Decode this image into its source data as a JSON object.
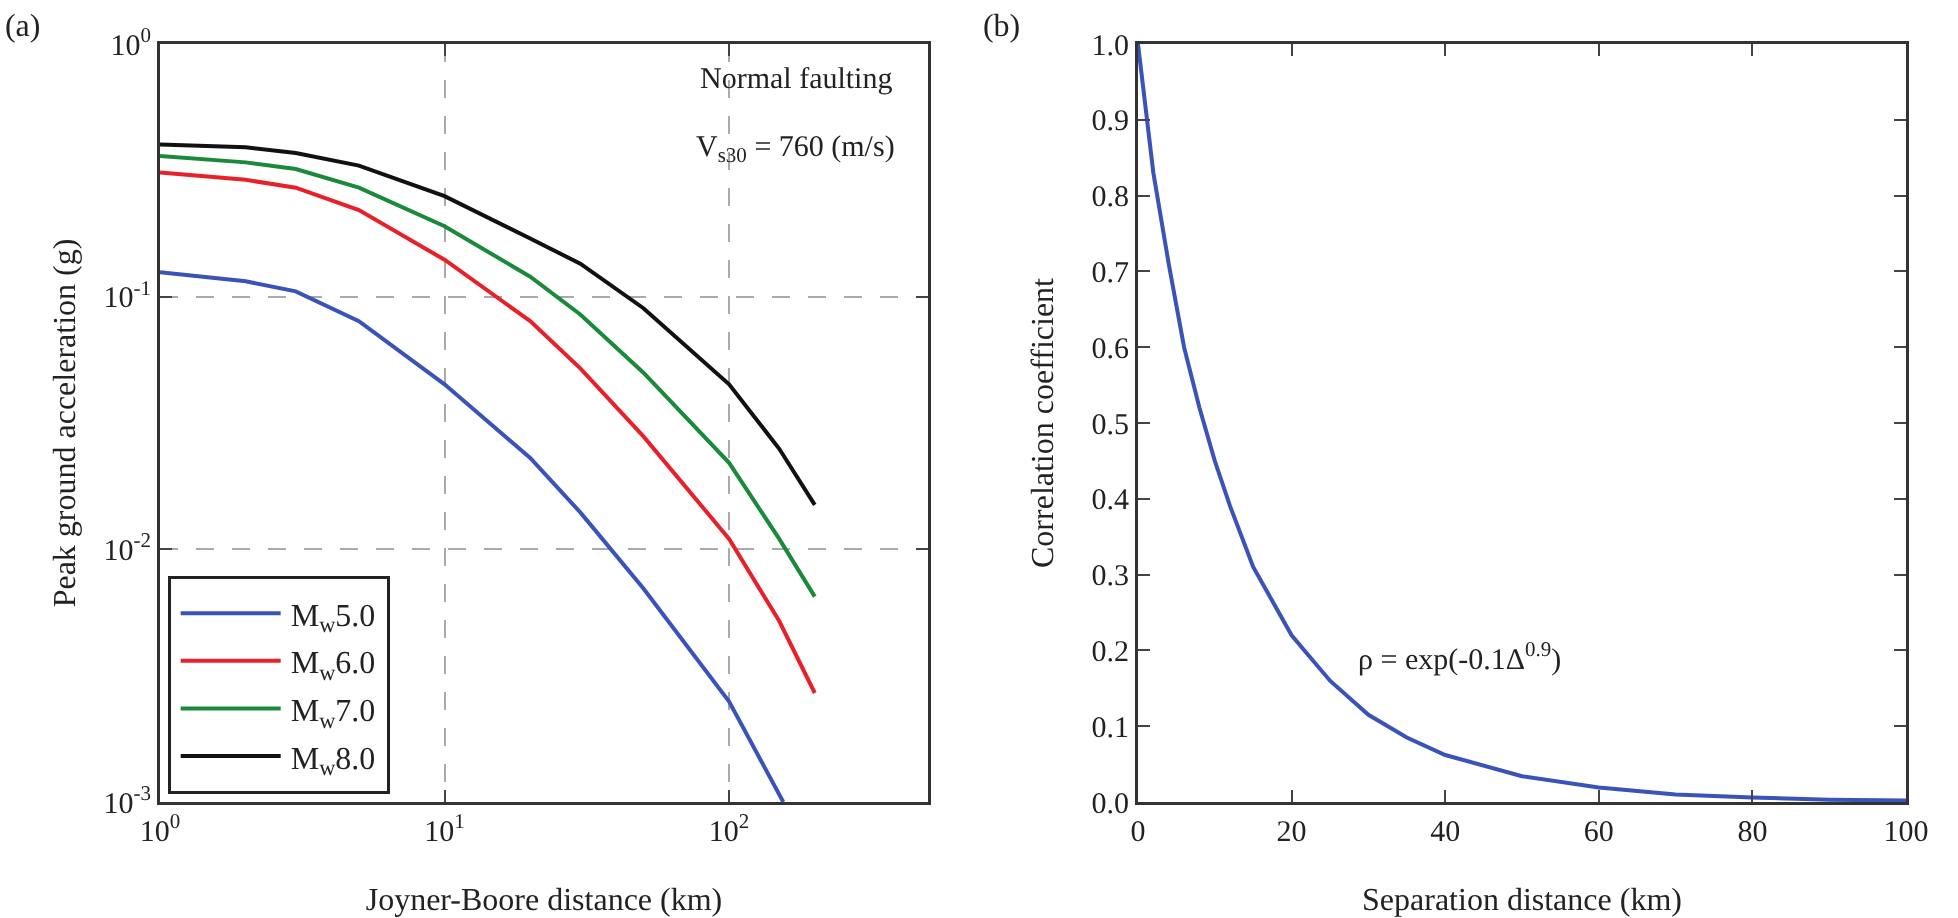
{
  "chart_data": [
    {
      "type": "line",
      "title": "(a)",
      "xlabel": "Joyner-Boore distance (km)",
      "ylabel": "Peak ground acceleration (g)",
      "log": "xy",
      "grid": true,
      "legend": "bottom left",
      "line_style": "solid",
      "xlim": [
        1,
        500
      ],
      "ylim": [
        0.001,
        1
      ],
      "xticks": [
        {
          "value": 1,
          "label": "10$^{0}$"
        },
        {
          "value": 10,
          "label": "10$^{1}$"
        },
        {
          "value": 100,
          "label": "10$^{2}$"
        }
      ],
      "yticks": [
        {
          "value": 0.001,
          "label": "10$^{-3}$"
        },
        {
          "value": 0.01,
          "label": "10$^{-2}$"
        },
        {
          "value": 0.1,
          "label": "10$^{-1}$"
        },
        {
          "value": 1,
          "label": "10$^{0}$"
        }
      ],
      "annotations": [
        "Normal faulting",
        "V$_{s30}$ = 760 (m/s)"
      ],
      "series": [
        {
          "name": "M$_{w}$5.0",
          "color": "#3a53b8",
          "x": [
            1,
            2,
            3,
            5,
            10,
            20,
            30,
            50,
            100,
            155
          ],
          "values": [
            0.125,
            0.115,
            0.105,
            0.08,
            0.045,
            0.023,
            0.014,
            0.007,
            0.0025,
            0.001
          ]
        },
        {
          "name": "M$_{w}$6.0",
          "color": "#e8202a",
          "x": [
            1,
            2,
            3,
            5,
            10,
            20,
            30,
            50,
            100,
            150,
            200
          ],
          "values": [
            0.31,
            0.29,
            0.27,
            0.22,
            0.14,
            0.08,
            0.052,
            0.028,
            0.011,
            0.0052,
            0.0027
          ]
        },
        {
          "name": "M$_{w}$7.0",
          "color": "#1a8a3a",
          "x": [
            1,
            2,
            3,
            5,
            10,
            20,
            30,
            50,
            100,
            150,
            200
          ],
          "values": [
            0.36,
            0.34,
            0.32,
            0.27,
            0.19,
            0.12,
            0.085,
            0.05,
            0.022,
            0.011,
            0.0065
          ]
        },
        {
          "name": "M$_{w}$8.0",
          "color": "#111111",
          "x": [
            1,
            2,
            3,
            5,
            10,
            20,
            30,
            50,
            100,
            150,
            200
          ],
          "values": [
            0.4,
            0.39,
            0.37,
            0.33,
            0.25,
            0.17,
            0.135,
            0.09,
            0.045,
            0.025,
            0.015
          ]
        }
      ]
    },
    {
      "type": "line",
      "title": "(b)",
      "xlabel": "Separation distance (km)",
      "ylabel": "Correlation coefficient",
      "grid": false,
      "legend": false,
      "line_style": "solid",
      "xlim": [
        0,
        100
      ],
      "ylim": [
        0,
        1
      ],
      "xticks": [
        0,
        20,
        40,
        60,
        80,
        100
      ],
      "yticks": [
        {
          "value": 0,
          "label": "0.0"
        },
        {
          "value": 0.1,
          "label": "0.1"
        },
        {
          "value": 0.2,
          "label": "0.2"
        },
        {
          "value": 0.3,
          "label": "0.3"
        },
        {
          "value": 0.4,
          "label": "0.4"
        },
        {
          "value": 0.5,
          "label": "0.5"
        },
        {
          "value": 0.6,
          "label": "0.6"
        },
        {
          "value": 0.7,
          "label": "0.7"
        },
        {
          "value": 0.8,
          "label": "0.8"
        },
        {
          "value": 0.9,
          "label": "0.9"
        },
        {
          "value": 1,
          "label": "1.0"
        }
      ],
      "annotations": [
        "ρ = exp(-0.1Δ$^{0.9}$)"
      ],
      "series": [
        {
          "color": "#3a53b8",
          "x": [
            0,
            2,
            4,
            6,
            8,
            10,
            12,
            15,
            20,
            25,
            30,
            35,
            40,
            50,
            60,
            70,
            80,
            90,
            100
          ],
          "values": [
            1,
            0.83,
            0.71,
            0.6,
            0.52,
            0.45,
            0.39,
            0.31,
            0.22,
            0.16,
            0.115,
            0.085,
            0.062,
            0.034,
            0.019,
            0.01,
            0.006,
            0.003,
            0.002
          ]
        }
      ]
    }
  ]
}
